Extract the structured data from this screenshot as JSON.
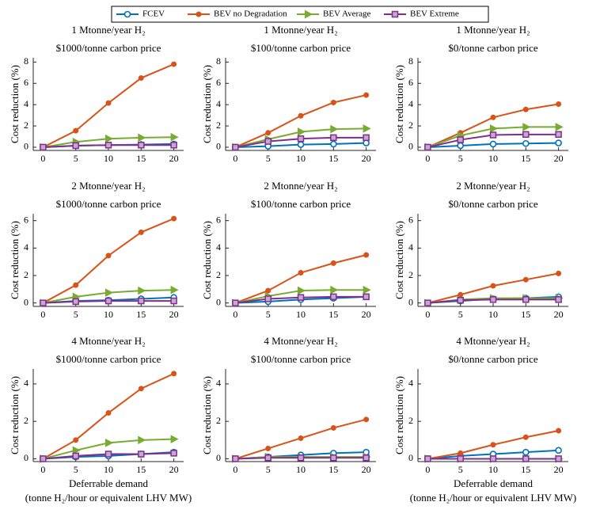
{
  "chart_data": [
    {
      "type": "line",
      "title": "1 Mtonne/year H₂",
      "subtitle": "$1000/tonne carbon price",
      "ylabel": "Cost reduction (%)",
      "x": [
        0,
        5,
        10,
        15,
        20
      ],
      "xlim": [
        -1.5,
        21.5
      ],
      "xticks": [
        0,
        5,
        10,
        15,
        20
      ],
      "ylim": [
        -0.3,
        8.4
      ],
      "yticks": [
        0,
        2,
        4,
        6,
        8
      ],
      "series": [
        {
          "name": "FCEV",
          "color": "#0072bd",
          "marker": "circle",
          "values": [
            0,
            0.15,
            0.2,
            0.25,
            0.3
          ]
        },
        {
          "name": "BEV no Degradation",
          "color": "#d95319",
          "marker": "dot",
          "values": [
            0,
            1.55,
            4.15,
            6.5,
            7.8
          ]
        },
        {
          "name": "BEV Average",
          "color": "#77ac30",
          "marker": "triangle",
          "values": [
            0,
            0.5,
            0.8,
            0.9,
            0.95
          ]
        },
        {
          "name": "BEV Extreme",
          "color": "#7e2f8e",
          "marker": "square",
          "values": [
            0,
            0.15,
            0.2,
            0.2,
            0.2
          ]
        }
      ]
    },
    {
      "type": "line",
      "title": "1 Mtonne/year H₂",
      "subtitle": "$100/tonne carbon price",
      "ylabel": "Cost reduction (%)",
      "x": [
        0,
        5,
        10,
        15,
        20
      ],
      "xlim": [
        -1.5,
        21.5
      ],
      "xticks": [
        0,
        5,
        10,
        15,
        20
      ],
      "ylim": [
        -0.3,
        8.4
      ],
      "yticks": [
        0,
        2,
        4,
        6,
        8
      ],
      "series": [
        {
          "color": "#0072bd",
          "marker": "circle",
          "values": [
            0,
            0.1,
            0.25,
            0.3,
            0.4
          ]
        },
        {
          "color": "#d95319",
          "marker": "dot",
          "values": [
            0,
            1.35,
            2.95,
            4.2,
            4.9
          ]
        },
        {
          "color": "#77ac30",
          "marker": "triangle",
          "values": [
            0,
            0.75,
            1.45,
            1.7,
            1.75
          ]
        },
        {
          "color": "#7e2f8e",
          "marker": "square",
          "values": [
            0,
            0.55,
            0.8,
            0.9,
            0.9
          ]
        }
      ]
    },
    {
      "type": "line",
      "title": "1 Mtonne/year H₂",
      "subtitle": "$0/tonne carbon price",
      "ylabel": "Cost reduction (%)",
      "x": [
        0,
        5,
        10,
        15,
        20
      ],
      "xlim": [
        -1.5,
        21.5
      ],
      "xticks": [
        0,
        5,
        10,
        15,
        20
      ],
      "ylim": [
        -0.3,
        8.4
      ],
      "yticks": [
        0,
        2,
        4,
        6,
        8
      ],
      "series": [
        {
          "color": "#0072bd",
          "marker": "circle",
          "values": [
            0,
            0.15,
            0.3,
            0.35,
            0.4
          ]
        },
        {
          "color": "#d95319",
          "marker": "dot",
          "values": [
            0,
            1.35,
            2.8,
            3.55,
            4.05
          ]
        },
        {
          "color": "#77ac30",
          "marker": "triangle",
          "values": [
            0,
            1.1,
            1.75,
            1.9,
            1.9
          ]
        },
        {
          "color": "#7e2f8e",
          "marker": "square",
          "values": [
            0,
            0.7,
            1.15,
            1.2,
            1.2
          ]
        }
      ]
    },
    {
      "type": "line",
      "title": "2 Mtonne/year H₂",
      "subtitle": "$1000/tonne carbon price",
      "ylabel": "Cost reduction (%)",
      "x": [
        0,
        5,
        10,
        15,
        20
      ],
      "xlim": [
        -1.5,
        21.5
      ],
      "xticks": [
        0,
        5,
        10,
        15,
        20
      ],
      "ylim": [
        -0.25,
        6.5
      ],
      "yticks": [
        0,
        2,
        4,
        6
      ],
      "series": [
        {
          "color": "#0072bd",
          "marker": "circle",
          "values": [
            0,
            0.15,
            0.2,
            0.3,
            0.4
          ]
        },
        {
          "color": "#d95319",
          "marker": "dot",
          "values": [
            0,
            1.3,
            3.45,
            5.15,
            6.15
          ]
        },
        {
          "color": "#77ac30",
          "marker": "triangle",
          "values": [
            0,
            0.45,
            0.75,
            0.9,
            0.95
          ]
        },
        {
          "color": "#7e2f8e",
          "marker": "square",
          "values": [
            0,
            0.1,
            0.15,
            0.15,
            0.15
          ]
        }
      ]
    },
    {
      "type": "line",
      "title": "2 Mtonne/year H₂",
      "subtitle": "$100/tonne carbon price",
      "ylabel": "Cost reduction (%)",
      "x": [
        0,
        5,
        10,
        15,
        20
      ],
      "xlim": [
        -1.5,
        21.5
      ],
      "xticks": [
        0,
        5,
        10,
        15,
        20
      ],
      "ylim": [
        -0.25,
        6.5
      ],
      "yticks": [
        0,
        2,
        4,
        6
      ],
      "series": [
        {
          "color": "#0072bd",
          "marker": "circle",
          "values": [
            0,
            0.1,
            0.25,
            0.35,
            0.45
          ]
        },
        {
          "color": "#d95319",
          "marker": "dot",
          "values": [
            0,
            0.9,
            2.2,
            2.9,
            3.5
          ]
        },
        {
          "color": "#77ac30",
          "marker": "triangle",
          "values": [
            0,
            0.5,
            0.9,
            0.95,
            0.95
          ]
        },
        {
          "color": "#7e2f8e",
          "marker": "square",
          "values": [
            0,
            0.3,
            0.4,
            0.45,
            0.45
          ]
        }
      ]
    },
    {
      "type": "line",
      "title": "2 Mtonne/year H₂",
      "subtitle": "$0/tonne carbon price",
      "ylabel": "Cost reduction (%)",
      "x": [
        0,
        5,
        10,
        15,
        20
      ],
      "xlim": [
        -1.5,
        21.5
      ],
      "xticks": [
        0,
        5,
        10,
        15,
        20
      ],
      "ylim": [
        -0.25,
        6.5
      ],
      "yticks": [
        0,
        2,
        4,
        6
      ],
      "series": [
        {
          "color": "#0072bd",
          "marker": "circle",
          "values": [
            0,
            0.15,
            0.3,
            0.35,
            0.45
          ]
        },
        {
          "color": "#d95319",
          "marker": "dot",
          "values": [
            0,
            0.6,
            1.25,
            1.7,
            2.15
          ]
        },
        {
          "color": "#77ac30",
          "marker": "triangle",
          "values": [
            0,
            0.25,
            0.35,
            0.35,
            0.35
          ]
        },
        {
          "color": "#7e2f8e",
          "marker": "square",
          "values": [
            0,
            0.2,
            0.25,
            0.25,
            0.25
          ]
        }
      ]
    },
    {
      "type": "line",
      "title": "4 Mtonne/year H₂",
      "subtitle": "$1000/tonne carbon price",
      "ylabel": "Cost reduction (%)",
      "xlabel": [
        "Deferrable demand",
        "(tonne H₂/hour or equivalent LHV MW)"
      ],
      "x": [
        0,
        5,
        10,
        15,
        20
      ],
      "xlim": [
        -1.5,
        21.5
      ],
      "xticks": [
        0,
        5,
        10,
        15,
        20
      ],
      "ylim": [
        -0.15,
        4.8
      ],
      "yticks": [
        0,
        2,
        4
      ],
      "series": [
        {
          "color": "#0072bd",
          "marker": "circle",
          "values": [
            0,
            0.1,
            0.15,
            0.25,
            0.35
          ]
        },
        {
          "color": "#d95319",
          "marker": "dot",
          "values": [
            0,
            1.0,
            2.45,
            3.75,
            4.55
          ]
        },
        {
          "color": "#77ac30",
          "marker": "triangle",
          "values": [
            0,
            0.45,
            0.85,
            1.0,
            1.05
          ]
        },
        {
          "color": "#7e2f8e",
          "marker": "square",
          "values": [
            0,
            0.15,
            0.25,
            0.25,
            0.3
          ]
        }
      ]
    },
    {
      "type": "line",
      "title": "4 Mtonne/year H₂",
      "subtitle": "$100/tonne carbon price",
      "ylabel": "Cost reduction (%)",
      "x": [
        0,
        5,
        10,
        15,
        20
      ],
      "xlim": [
        -1.5,
        21.5
      ],
      "xticks": [
        0,
        5,
        10,
        15,
        20
      ],
      "ylim": [
        -0.15,
        4.8
      ],
      "yticks": [
        0,
        2,
        4
      ],
      "series": [
        {
          "color": "#0072bd",
          "marker": "circle",
          "values": [
            0,
            0.1,
            0.2,
            0.3,
            0.35
          ]
        },
        {
          "color": "#d95319",
          "marker": "dot",
          "values": [
            0,
            0.55,
            1.1,
            1.65,
            2.1
          ]
        },
        {
          "color": "#77ac30",
          "marker": "triangle",
          "values": [
            0,
            0.1,
            0.1,
            0.1,
            0.1
          ]
        },
        {
          "color": "#7e2f8e",
          "marker": "square",
          "values": [
            0,
            0.05,
            0.05,
            0.05,
            0.05
          ]
        }
      ]
    },
    {
      "type": "line",
      "title": "4 Mtonne/year H₂",
      "subtitle": "$0/tonne carbon price",
      "ylabel": "Cost reduction (%)",
      "xlabel": [
        "Deferrable demand",
        "(tonne H₂/hour or equivalent LHV MW)"
      ],
      "x": [
        0,
        5,
        10,
        15,
        20
      ],
      "xlim": [
        -1.5,
        21.5
      ],
      "xticks": [
        0,
        5,
        10,
        15,
        20
      ],
      "ylim": [
        -0.15,
        4.8
      ],
      "yticks": [
        0,
        2,
        4
      ],
      "series": [
        {
          "color": "#0072bd",
          "marker": "circle",
          "values": [
            0,
            0.15,
            0.25,
            0.35,
            0.45
          ]
        },
        {
          "color": "#d95319",
          "marker": "dot",
          "values": [
            0,
            0.3,
            0.75,
            1.15,
            1.5
          ]
        },
        {
          "color": "#77ac30",
          "marker": "triangle",
          "values": [
            0,
            0,
            0,
            0,
            0
          ]
        },
        {
          "color": "#7e2f8e",
          "marker": "square",
          "values": [
            0,
            0,
            0,
            0,
            0
          ]
        }
      ]
    }
  ]
}
